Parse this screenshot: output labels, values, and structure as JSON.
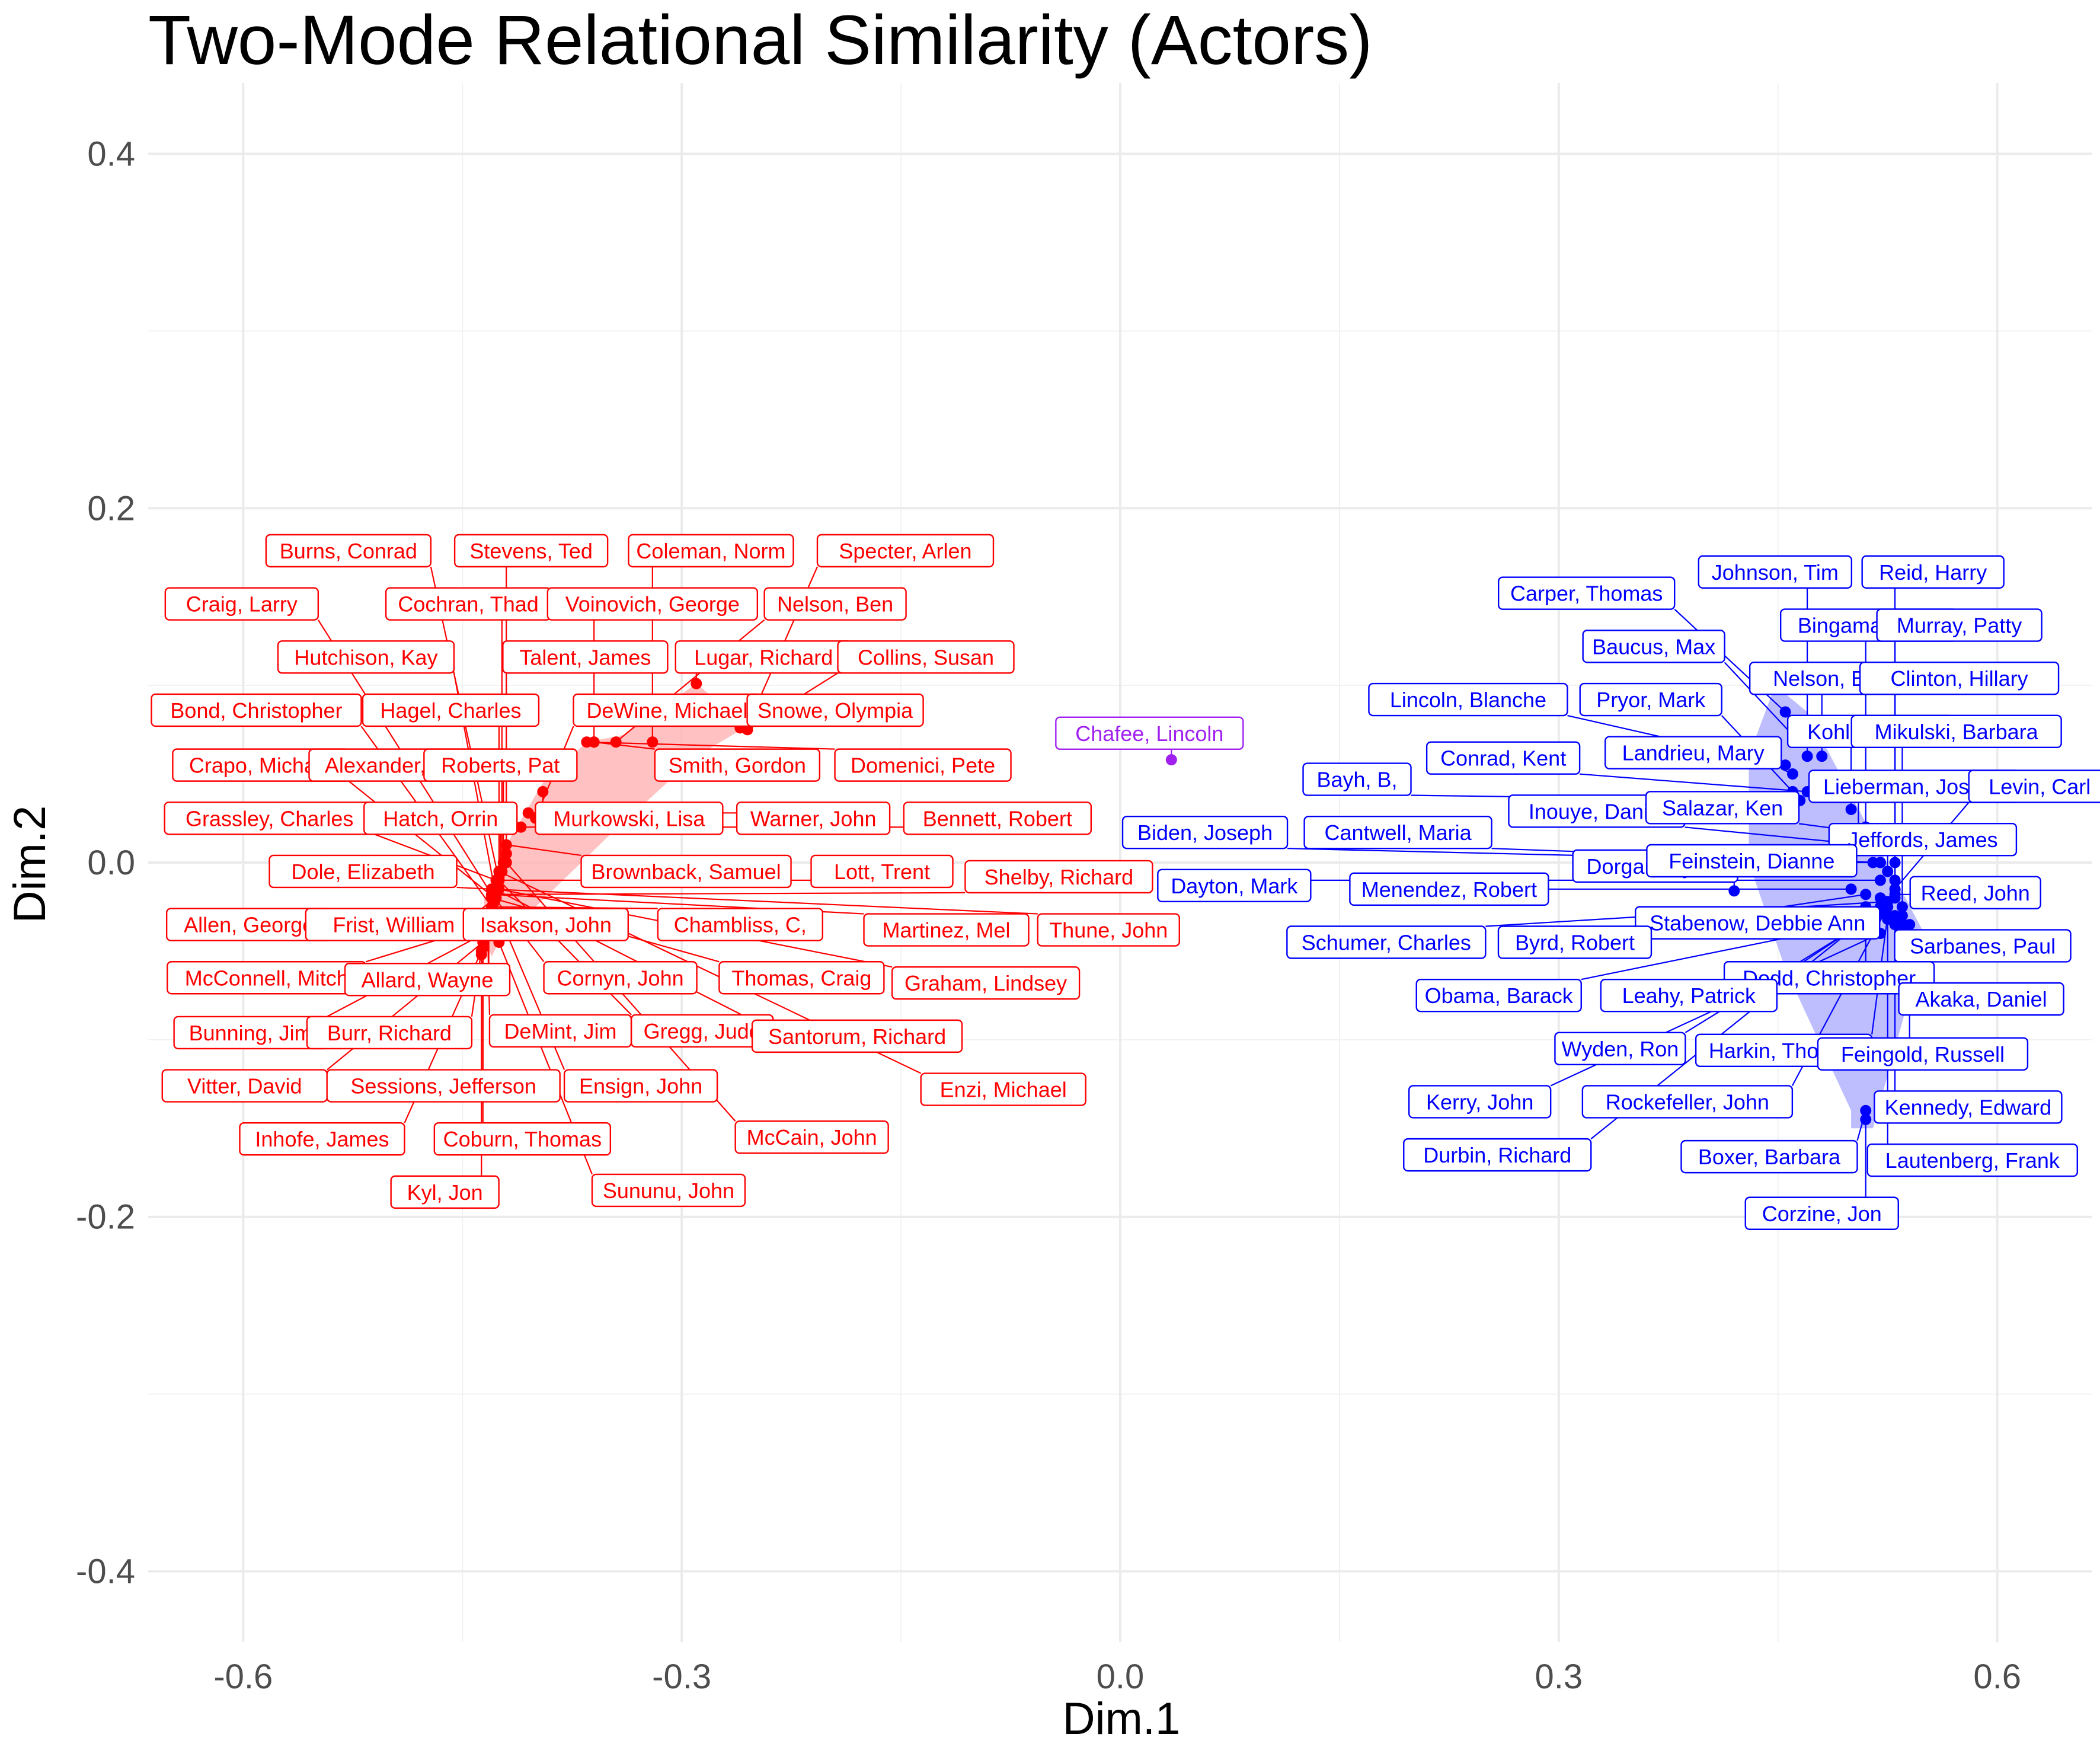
{
  "chart_data": {
    "type": "scatter",
    "title": "Two-Mode Relational Similarity (Actors)",
    "xlabel": "Dim.1",
    "ylabel": "Dim.2",
    "xlim": [
      -0.665,
      0.665
    ],
    "ylim": [
      -0.44,
      0.44
    ],
    "x_ticks": [
      -0.6,
      -0.3,
      0.0,
      0.3,
      0.6
    ],
    "x_tick_labels": [
      "-0.6",
      "-0.3",
      "0.0",
      "0.3",
      "0.6"
    ],
    "y_ticks": [
      -0.4,
      -0.2,
      0.0,
      0.2,
      0.4
    ],
    "y_tick_labels": [
      "-0.4",
      "-0.2",
      "0.0",
      "0.2",
      "0.4"
    ],
    "grid": true,
    "legend": "none",
    "colors": {
      "republican": "#ff0000",
      "democrat": "#0000ff",
      "independent": "#a020f0",
      "republican_hull": "#ffb6b6",
      "democrat_hull": "#b3b3ff"
    },
    "hulls": [
      {
        "group": "republican",
        "points": [
          [
            -0.43,
            -0.053
          ],
          [
            -0.425,
            -0.045
          ],
          [
            -0.35,
            0.015
          ],
          [
            -0.29,
            0.06
          ],
          [
            -0.255,
            0.077
          ],
          [
            -0.29,
            0.101
          ],
          [
            -0.34,
            0.072
          ],
          [
            -0.365,
            0.068
          ],
          [
            -0.395,
            0.045
          ],
          [
            -0.42,
            0.01
          ],
          [
            -0.435,
            -0.02
          ],
          [
            -0.437,
            -0.04
          ]
        ]
      },
      {
        "group": "democrat",
        "points": [
          [
            0.43,
            0.06
          ],
          [
            0.448,
            0.1
          ],
          [
            0.47,
            0.085
          ],
          [
            0.55,
            -0.04
          ],
          [
            0.545,
            -0.06
          ],
          [
            0.515,
            -0.15
          ],
          [
            0.5,
            -0.15
          ],
          [
            0.5,
            -0.14
          ],
          [
            0.455,
            -0.06
          ],
          [
            0.43,
            0.0
          ]
        ]
      }
    ],
    "points": [
      {
        "name": "Burns, Conrad",
        "group": "republican",
        "x": -0.425,
        "y": -0.01,
        "lx": -0.528,
        "ly": 0.176
      },
      {
        "name": "Stevens, Ted",
        "group": "republican",
        "x": -0.42,
        "y": 0.005,
        "lx": -0.403,
        "ly": 0.176
      },
      {
        "name": "Coleman, Norm",
        "group": "republican",
        "x": -0.32,
        "y": 0.068,
        "lx": -0.28,
        "ly": 0.176
      },
      {
        "name": "Specter, Arlen",
        "group": "republican",
        "x": -0.255,
        "y": 0.077,
        "lx": -0.147,
        "ly": 0.176
      },
      {
        "name": "Craig, Larry",
        "group": "republican",
        "x": -0.43,
        "y": -0.018,
        "lx": -0.601,
        "ly": 0.146
      },
      {
        "name": "Cochran, Thad",
        "group": "republican",
        "x": -0.423,
        "y": -0.005,
        "lx": -0.446,
        "ly": 0.146
      },
      {
        "name": "Voinovich, George",
        "group": "republican",
        "x": -0.36,
        "y": 0.068,
        "lx": -0.32,
        "ly": 0.146
      },
      {
        "name": "Nelson, Ben",
        "group": "republican",
        "x": -0.345,
        "y": 0.068,
        "lx": -0.195,
        "ly": 0.146
      },
      {
        "name": "Hutchison, Kay",
        "group": "republican",
        "x": -0.428,
        "y": -0.015,
        "lx": -0.516,
        "ly": 0.116
      },
      {
        "name": "Talent, James",
        "group": "republican",
        "x": -0.42,
        "y": 0.0,
        "lx": -0.366,
        "ly": 0.116
      },
      {
        "name": "Lugar, Richard",
        "group": "republican",
        "x": -0.29,
        "y": 0.101,
        "lx": -0.244,
        "ly": 0.116
      },
      {
        "name": "Collins, Susan",
        "group": "republican",
        "x": -0.255,
        "y": 0.075,
        "lx": -0.133,
        "ly": 0.116
      },
      {
        "name": "Bond, Christopher",
        "group": "republican",
        "x": -0.43,
        "y": -0.025,
        "lx": -0.591,
        "ly": 0.086
      },
      {
        "name": "Hagel, Charles",
        "group": "republican",
        "x": -0.425,
        "y": -0.008,
        "lx": -0.458,
        "ly": 0.086
      },
      {
        "name": "DeWine, Michael",
        "group": "republican",
        "x": -0.4,
        "y": 0.025,
        "lx": -0.31,
        "ly": 0.086
      },
      {
        "name": "Snowe, Olympia",
        "group": "republican",
        "x": -0.26,
        "y": 0.076,
        "lx": -0.195,
        "ly": 0.086
      },
      {
        "name": "Crapo, Michael",
        "group": "republican",
        "x": -0.428,
        "y": -0.02,
        "lx": -0.588,
        "ly": 0.055
      },
      {
        "name": "Alexander, Lamar",
        "group": "republican",
        "x": -0.422,
        "y": 0.0,
        "lx": -0.487,
        "ly": 0.055
      },
      {
        "name": "Roberts, Pat",
        "group": "republican",
        "x": -0.42,
        "y": 0.005,
        "lx": -0.424,
        "ly": 0.055
      },
      {
        "name": "Smith, Gordon",
        "group": "republican",
        "x": -0.36,
        "y": 0.068,
        "lx": -0.262,
        "ly": 0.055
      },
      {
        "name": "Domenici, Pete",
        "group": "republican",
        "x": -0.365,
        "y": 0.068,
        "lx": -0.135,
        "ly": 0.055
      },
      {
        "name": "Grassley, Charles",
        "group": "republican",
        "x": -0.427,
        "y": -0.01,
        "lx": -0.582,
        "ly": 0.025
      },
      {
        "name": "Hatch, Orrin",
        "group": "republican",
        "x": -0.424,
        "y": -0.005,
        "lx": -0.465,
        "ly": 0.025
      },
      {
        "name": "Murkowski, Lisa",
        "group": "republican",
        "x": -0.395,
        "y": 0.04,
        "lx": -0.336,
        "ly": 0.025
      },
      {
        "name": "Warner, John",
        "group": "republican",
        "x": -0.405,
        "y": 0.028,
        "lx": -0.21,
        "ly": 0.025
      },
      {
        "name": "Bennett, Robert",
        "group": "republican",
        "x": -0.41,
        "y": 0.02,
        "lx": -0.084,
        "ly": 0.025
      },
      {
        "name": "Dole, Elizabeth",
        "group": "republican",
        "x": -0.43,
        "y": -0.015,
        "lx": -0.518,
        "ly": -0.005
      },
      {
        "name": "Brownback, Samuel",
        "group": "republican",
        "x": -0.42,
        "y": 0.01,
        "lx": -0.297,
        "ly": -0.005
      },
      {
        "name": "Lott, Trent",
        "group": "republican",
        "x": -0.425,
        "y": -0.01,
        "lx": -0.163,
        "ly": -0.005
      },
      {
        "name": "Shelby, Richard",
        "group": "republican",
        "x": -0.428,
        "y": -0.018,
        "lx": -0.042,
        "ly": -0.008
      },
      {
        "name": "Allen, George",
        "group": "republican",
        "x": -0.432,
        "y": -0.03,
        "lx": -0.596,
        "ly": -0.035
      },
      {
        "name": "Frist, William",
        "group": "republican",
        "x": -0.427,
        "y": -0.02,
        "lx": -0.497,
        "ly": -0.035
      },
      {
        "name": "Isakson, John",
        "group": "republican",
        "x": -0.428,
        "y": -0.022,
        "lx": -0.393,
        "ly": -0.035
      },
      {
        "name": "Chambliss, C,",
        "group": "republican",
        "x": -0.43,
        "y": -0.025,
        "lx": -0.26,
        "ly": -0.035
      },
      {
        "name": "Martinez, Mel",
        "group": "republican",
        "x": -0.43,
        "y": -0.018,
        "lx": -0.119,
        "ly": -0.038
      },
      {
        "name": "Thune, John",
        "group": "republican",
        "x": -0.43,
        "y": -0.015,
        "lx": -0.008,
        "ly": -0.038
      },
      {
        "name": "McConnell, Mitch",
        "group": "republican",
        "x": -0.433,
        "y": -0.035,
        "lx": -0.584,
        "ly": -0.065
      },
      {
        "name": "Allard, Wayne",
        "group": "republican",
        "x": -0.432,
        "y": -0.03,
        "lx": -0.474,
        "ly": -0.066
      },
      {
        "name": "Cornyn, John",
        "group": "republican",
        "x": -0.428,
        "y": -0.02,
        "lx": -0.342,
        "ly": -0.065
      },
      {
        "name": "Thomas, Craig",
        "group": "republican",
        "x": -0.43,
        "y": -0.02,
        "lx": -0.218,
        "ly": -0.065
      },
      {
        "name": "Graham, Lindsey",
        "group": "republican",
        "x": -0.425,
        "y": -0.015,
        "lx": -0.092,
        "ly": -0.068
      },
      {
        "name": "Bunning, Jim",
        "group": "republican",
        "x": -0.435,
        "y": -0.04,
        "lx": -0.595,
        "ly": -0.096
      },
      {
        "name": "Burr, Richard",
        "group": "republican",
        "x": -0.435,
        "y": -0.038,
        "lx": -0.5,
        "ly": -0.096
      },
      {
        "name": "DeMint, Jim",
        "group": "republican",
        "x": -0.433,
        "y": -0.03,
        "lx": -0.383,
        "ly": -0.095
      },
      {
        "name": "Gregg, Judd",
        "group": "republican",
        "x": -0.425,
        "y": -0.01,
        "lx": -0.286,
        "ly": -0.095
      },
      {
        "name": "Santorum, Richard",
        "group": "republican",
        "x": -0.428,
        "y": -0.015,
        "lx": -0.18,
        "ly": -0.098
      },
      {
        "name": "Vitter, David",
        "group": "republican",
        "x": -0.436,
        "y": -0.045,
        "lx": -0.599,
        "ly": -0.126
      },
      {
        "name": "Sessions, Jefferson",
        "group": "republican",
        "x": -0.436,
        "y": -0.042,
        "lx": -0.463,
        "ly": -0.126
      },
      {
        "name": "Ensign, John",
        "group": "republican",
        "x": -0.43,
        "y": -0.02,
        "lx": -0.328,
        "ly": -0.126
      },
      {
        "name": "Enzi, Michael",
        "group": "republican",
        "x": -0.425,
        "y": -0.005,
        "lx": -0.08,
        "ly": -0.128
      },
      {
        "name": "Inhofe, James",
        "group": "republican",
        "x": -0.437,
        "y": -0.05,
        "lx": -0.546,
        "ly": -0.156
      },
      {
        "name": "Coburn, Thomas",
        "group": "republican",
        "x": -0.436,
        "y": -0.048,
        "lx": -0.409,
        "ly": -0.156
      },
      {
        "name": "McCain, John",
        "group": "republican",
        "x": -0.42,
        "y": -0.0,
        "lx": -0.211,
        "ly": -0.155
      },
      {
        "name": "Kyl, Jon",
        "group": "republican",
        "x": -0.437,
        "y": -0.052,
        "lx": -0.462,
        "ly": -0.186
      },
      {
        "name": "Sununu, John",
        "group": "republican",
        "x": -0.425,
        "y": -0.045,
        "lx": -0.309,
        "ly": -0.185
      },
      {
        "name": "Chafee, Lincoln",
        "group": "independent",
        "x": 0.035,
        "y": 0.058,
        "lx": 0.02,
        "ly": 0.073
      },
      {
        "name": "Johnson, Tim",
        "group": "democrat",
        "x": 0.47,
        "y": 0.06,
        "lx": 0.448,
        "ly": 0.164
      },
      {
        "name": "Reid, Harry",
        "group": "democrat",
        "x": 0.53,
        "y": 0.0,
        "lx": 0.556,
        "ly": 0.164
      },
      {
        "name": "Carper, Thomas",
        "group": "democrat",
        "x": 0.455,
        "y": 0.085,
        "lx": 0.319,
        "ly": 0.152
      },
      {
        "name": "Bingaman, Jeff",
        "group": "democrat",
        "x": 0.51,
        "y": 0.02,
        "lx": 0.512,
        "ly": 0.134
      },
      {
        "name": "Murray, Patty",
        "group": "democrat",
        "x": 0.53,
        "y": -0.01,
        "lx": 0.574,
        "ly": 0.134
      },
      {
        "name": "Baucus, Max",
        "group": "democrat",
        "x": 0.46,
        "y": 0.072,
        "lx": 0.365,
        "ly": 0.122
      },
      {
        "name": "Nelson, Bill",
        "group": "democrat",
        "x": 0.48,
        "y": 0.06,
        "lx": 0.483,
        "ly": 0.104
      },
      {
        "name": "Clinton, Hillary",
        "group": "democrat",
        "x": 0.53,
        "y": -0.02,
        "lx": 0.574,
        "ly": 0.104
      },
      {
        "name": "Lincoln, Blanche",
        "group": "democrat",
        "x": 0.455,
        "y": 0.055,
        "lx": 0.238,
        "ly": 0.092
      },
      {
        "name": "Pryor, Mark",
        "group": "democrat",
        "x": 0.46,
        "y": 0.04,
        "lx": 0.363,
        "ly": 0.092
      },
      {
        "name": "Kohl, Herbert",
        "group": "democrat",
        "x": 0.5,
        "y": 0.03,
        "lx": 0.513,
        "ly": 0.074
      },
      {
        "name": "Mikulski, Barbara",
        "group": "democrat",
        "x": 0.535,
        "y": -0.025,
        "lx": 0.572,
        "ly": 0.074
      },
      {
        "name": "Conrad, Kent",
        "group": "democrat",
        "x": 0.47,
        "y": 0.04,
        "lx": 0.262,
        "ly": 0.059
      },
      {
        "name": "Landrieu, Mary",
        "group": "democrat",
        "x": 0.46,
        "y": 0.05,
        "lx": 0.392,
        "ly": 0.062
      },
      {
        "name": "Bayh, B,",
        "group": "democrat",
        "x": 0.465,
        "y": 0.035,
        "lx": 0.162,
        "ly": 0.047
      },
      {
        "name": "Lieberman, Joseph",
        "group": "democrat",
        "x": 0.505,
        "y": 0.015,
        "lx": 0.543,
        "ly": 0.043
      },
      {
        "name": "Levin, Carl",
        "group": "democrat",
        "x": 0.53,
        "y": -0.015,
        "lx": 0.629,
        "ly": 0.043
      },
      {
        "name": "Inouye, Daniel",
        "group": "democrat",
        "x": 0.51,
        "y": 0.01,
        "lx": 0.326,
        "ly": 0.029
      },
      {
        "name": "Salazar, Ken",
        "group": "democrat",
        "x": 0.5,
        "y": 0.018,
        "lx": 0.412,
        "ly": 0.031
      },
      {
        "name": "Biden, Joseph",
        "group": "democrat",
        "x": 0.515,
        "y": 0.0,
        "lx": 0.058,
        "ly": 0.017
      },
      {
        "name": "Cantwell, Maria",
        "group": "democrat",
        "x": 0.52,
        "y": 0.0,
        "lx": 0.19,
        "ly": 0.017
      },
      {
        "name": "Jeffords, James",
        "group": "democrat",
        "x": 0.525,
        "y": -0.005,
        "lx": 0.549,
        "ly": 0.013
      },
      {
        "name": "Dorgan, Byron",
        "group": "democrat",
        "x": 0.42,
        "y": -0.016,
        "lx": 0.366,
        "ly": -0.002
      },
      {
        "name": "Feinstein, Dianne",
        "group": "democrat",
        "x": 0.52,
        "y": 0.0,
        "lx": 0.432,
        "ly": 0.001
      },
      {
        "name": "Dayton, Mark",
        "group": "democrat",
        "x": 0.52,
        "y": -0.01,
        "lx": 0.078,
        "ly": -0.013
      },
      {
        "name": "Menendez, Robert",
        "group": "democrat",
        "x": 0.5,
        "y": -0.015,
        "lx": 0.225,
        "ly": -0.015
      },
      {
        "name": "Reed, John",
        "group": "democrat",
        "x": 0.53,
        "y": -0.018,
        "lx": 0.585,
        "ly": -0.017
      },
      {
        "name": "Stabenow, Debbie Ann",
        "group": "democrat",
        "x": 0.52,
        "y": -0.02,
        "lx": 0.436,
        "ly": -0.034
      },
      {
        "name": "Schumer, Charles",
        "group": "democrat",
        "x": 0.525,
        "y": -0.022,
        "lx": 0.182,
        "ly": -0.045
      },
      {
        "name": "Byrd, Robert",
        "group": "democrat",
        "x": 0.51,
        "y": -0.018,
        "lx": 0.311,
        "ly": -0.045
      },
      {
        "name": "Sarbanes, Paul",
        "group": "democrat",
        "x": 0.535,
        "y": -0.035,
        "lx": 0.59,
        "ly": -0.047
      },
      {
        "name": "Dodd, Christopher",
        "group": "democrat",
        "x": 0.51,
        "y": -0.025,
        "lx": 0.485,
        "ly": -0.065
      },
      {
        "name": "Obama, Barack",
        "group": "democrat",
        "x": 0.53,
        "y": -0.03,
        "lx": 0.259,
        "ly": -0.075
      },
      {
        "name": "Leahy, Patrick",
        "group": "democrat",
        "x": 0.515,
        "y": -0.03,
        "lx": 0.389,
        "ly": -0.075
      },
      {
        "name": "Akaka, Daniel",
        "group": "democrat",
        "x": 0.535,
        "y": -0.03,
        "lx": 0.589,
        "ly": -0.077
      },
      {
        "name": "Wyden, Ron",
        "group": "democrat",
        "x": 0.52,
        "y": -0.028,
        "lx": 0.342,
        "ly": -0.105
      },
      {
        "name": "Harkin, Thomas",
        "group": "democrat",
        "x": 0.525,
        "y": -0.03,
        "lx": 0.454,
        "ly": -0.106
      },
      {
        "name": "Feingold, Russell",
        "group": "democrat",
        "x": 0.54,
        "y": -0.035,
        "lx": 0.549,
        "ly": -0.108
      },
      {
        "name": "Kerry, John",
        "group": "democrat",
        "x": 0.52,
        "y": -0.04,
        "lx": 0.246,
        "ly": -0.135
      },
      {
        "name": "Rockefeller, John",
        "group": "democrat",
        "x": 0.525,
        "y": -0.025,
        "lx": 0.388,
        "ly": -0.135
      },
      {
        "name": "Kennedy, Edward",
        "group": "democrat",
        "x": 0.53,
        "y": -0.035,
        "lx": 0.58,
        "ly": -0.138
      },
      {
        "name": "Durbin, Richard",
        "group": "democrat",
        "x": 0.52,
        "y": -0.025,
        "lx": 0.258,
        "ly": -0.165
      },
      {
        "name": "Boxer, Barbara",
        "group": "democrat",
        "x": 0.51,
        "y": -0.14,
        "lx": 0.444,
        "ly": -0.166
      },
      {
        "name": "Lautenberg, Frank",
        "group": "democrat",
        "x": 0.525,
        "y": -0.032,
        "lx": 0.583,
        "ly": -0.168
      },
      {
        "name": "Corzine, Jon",
        "group": "democrat",
        "x": 0.51,
        "y": -0.145,
        "lx": 0.48,
        "ly": -0.198
      }
    ]
  }
}
